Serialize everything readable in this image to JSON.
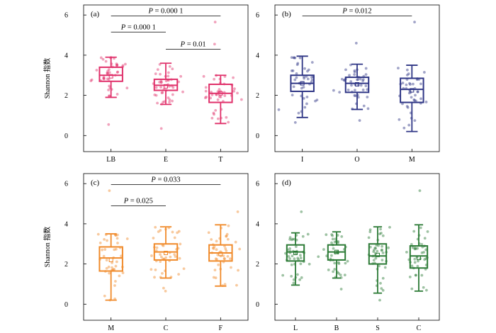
{
  "ylabel": "Shannon 指数",
  "chart_data": [
    {
      "type": "box",
      "panel": "(a)",
      "color": "#e0306a",
      "ylabel": "Shannon 指数",
      "ylim": [
        -0.8,
        6.5
      ],
      "yticks": [
        0,
        2,
        4,
        6
      ],
      "categories": [
        "LB",
        "E",
        "T"
      ],
      "boxes": [
        {
          "category": "LB",
          "min": 1.9,
          "q1": 2.7,
          "median": 3.0,
          "q3": 3.4,
          "max": 3.9,
          "mean": 2.95,
          "outliers": [
            0.55
          ]
        },
        {
          "category": "E",
          "min": 1.55,
          "q1": 2.25,
          "median": 2.5,
          "q3": 2.8,
          "max": 3.6,
          "mean": 2.45,
          "outliers": [
            0.35
          ]
        },
        {
          "category": "T",
          "min": 0.6,
          "q1": 1.65,
          "median": 2.1,
          "q3": 2.55,
          "max": 3.0,
          "mean": 2.1,
          "outliers": [
            4.55,
            5.65
          ]
        }
      ],
      "comparisons": [
        {
          "from": "LB",
          "to": "T",
          "level": 5.95,
          "label": "P = 0.000 1"
        },
        {
          "from": "LB",
          "to": "E",
          "level": 5.15,
          "label": "P = 0.000 1"
        },
        {
          "from": "E",
          "to": "T",
          "level": 4.3,
          "label": "P = 0.01"
        }
      ]
    },
    {
      "type": "box",
      "panel": "(b)",
      "color": "#2e3585",
      "ylabel": "",
      "ylim": [
        -0.8,
        6.5
      ],
      "yticks": [
        0,
        2,
        4,
        6
      ],
      "categories": [
        "I",
        "O",
        "M"
      ],
      "boxes": [
        {
          "category": "I",
          "min": 0.9,
          "q1": 2.2,
          "median": 2.6,
          "q3": 3.0,
          "max": 3.95,
          "mean": 2.6,
          "outliers": [
            0.65
          ]
        },
        {
          "category": "O",
          "min": 1.3,
          "q1": 2.15,
          "median": 2.6,
          "q3": 2.9,
          "max": 3.55,
          "mean": 2.55,
          "outliers": [
            0.75,
            4.6
          ]
        },
        {
          "category": "M",
          "min": 0.2,
          "q1": 1.65,
          "median": 2.3,
          "q3": 2.85,
          "max": 3.5,
          "mean": 2.25,
          "outliers": [
            5.65
          ]
        }
      ],
      "comparisons": [
        {
          "from": "I",
          "to": "M",
          "level": 5.95,
          "label": "P = 0.012"
        }
      ]
    },
    {
      "type": "box",
      "panel": "(c)",
      "color": "#f08a2a",
      "ylabel": "Shannon 指数",
      "ylim": [
        -0.8,
        6.5
      ],
      "yticks": [
        0,
        2,
        4,
        6
      ],
      "categories": [
        "M",
        "C",
        "F"
      ],
      "boxes": [
        {
          "category": "M",
          "min": 0.2,
          "q1": 1.65,
          "median": 2.3,
          "q3": 2.85,
          "max": 3.5,
          "mean": 2.2,
          "outliers": [
            5.65
          ]
        },
        {
          "category": "C",
          "min": 1.3,
          "q1": 2.2,
          "median": 2.6,
          "q3": 3.0,
          "max": 3.85,
          "mean": 2.55,
          "outliers": [
            0.65,
            0.8
          ]
        },
        {
          "category": "F",
          "min": 0.9,
          "q1": 2.15,
          "median": 2.55,
          "q3": 2.95,
          "max": 3.95,
          "mean": 2.5,
          "outliers": [
            4.6
          ]
        }
      ],
      "comparisons": [
        {
          "from": "M",
          "to": "F",
          "level": 5.95,
          "label": "P = 0.033"
        },
        {
          "from": "M",
          "to": "C",
          "level": 4.9,
          "label": "P = 0.025"
        }
      ]
    },
    {
      "type": "box",
      "panel": "(d)",
      "color": "#2b7a35",
      "ylabel": "",
      "ylim": [
        -0.8,
        6.5
      ],
      "yticks": [
        0,
        2,
        4,
        6
      ],
      "categories": [
        "L",
        "B",
        "S",
        "C"
      ],
      "boxes": [
        {
          "category": "L",
          "min": 0.95,
          "q1": 2.15,
          "median": 2.6,
          "q3": 2.95,
          "max": 3.55,
          "mean": 2.55,
          "outliers": [
            4.6
          ]
        },
        {
          "category": "B",
          "min": 1.3,
          "q1": 2.2,
          "median": 2.6,
          "q3": 2.95,
          "max": 3.6,
          "mean": 2.6,
          "outliers": [
            0.75
          ]
        },
        {
          "category": "S",
          "min": 0.55,
          "q1": 2.0,
          "median": 2.4,
          "q3": 3.0,
          "max": 3.85,
          "mean": 2.45,
          "outliers": [
            0.2
          ]
        },
        {
          "category": "C",
          "min": 0.65,
          "q1": 1.8,
          "median": 2.4,
          "q3": 2.9,
          "max": 3.95,
          "mean": 2.3,
          "outliers": [
            5.65
          ]
        }
      ],
      "comparisons": []
    }
  ]
}
